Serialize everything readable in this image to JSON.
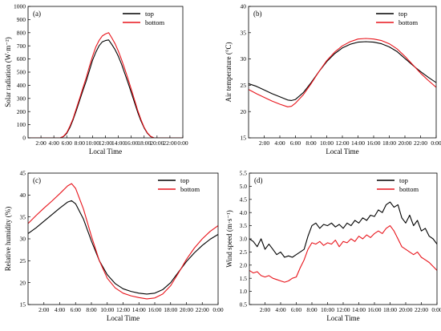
{
  "colors": {
    "top": "#000000",
    "bottom": "#e8141b"
  },
  "chart_data": [
    {
      "type": "line",
      "panel_label": "(a)",
      "xlabel": "Local Time",
      "ylabel": "Solar radiation (W·m⁻²)",
      "xlim": [
        0,
        24
      ],
      "ylim": [
        0,
        1000
      ],
      "xticks": [
        2,
        4,
        6,
        8,
        10,
        12,
        14,
        16,
        18,
        20,
        22,
        24
      ],
      "xtick_labels": [
        "2:00",
        "4:00",
        "6:00",
        "8:00",
        "10:00",
        "12:00",
        "14:00",
        "16:00",
        "18:00",
        "20:00",
        "22:00",
        "0:00"
      ],
      "yticks": [
        0,
        100,
        200,
        300,
        400,
        500,
        600,
        700,
        800,
        900,
        1000
      ],
      "ytick_labels": [
        "0",
        "100",
        "200",
        "300",
        "400",
        "500",
        "600",
        "700",
        "800",
        "900",
        "1000"
      ],
      "legend": "top-right",
      "series": [
        {
          "name": "top",
          "color_key": "top",
          "x": [
            0,
            5.0,
            5.5,
            6,
            6.5,
            7,
            7.5,
            8,
            8.5,
            9,
            9.5,
            10,
            10.5,
            11,
            11.5,
            12,
            12.5,
            13,
            13.5,
            14,
            14.5,
            15,
            15.5,
            16,
            16.5,
            17,
            17.5,
            18,
            18.5,
            19,
            19.5,
            24
          ],
          "y": [
            0,
            0,
            10,
            35,
            80,
            140,
            210,
            285,
            360,
            430,
            510,
            590,
            650,
            700,
            730,
            740,
            745,
            710,
            670,
            620,
            560,
            490,
            420,
            345,
            270,
            195,
            130,
            75,
            35,
            10,
            0,
            0
          ]
        },
        {
          "name": "bottom",
          "color_key": "bottom",
          "x": [
            0,
            5.0,
            5.5,
            6,
            6.5,
            7,
            7.5,
            8,
            8.5,
            9,
            9.5,
            10,
            10.5,
            11,
            11.5,
            12,
            12.5,
            13,
            13.5,
            14,
            14.5,
            15,
            15.5,
            16,
            16.5,
            17,
            17.5,
            18,
            18.5,
            19,
            19.5,
            24
          ],
          "y": [
            0,
            0,
            12,
            40,
            90,
            150,
            225,
            300,
            380,
            455,
            540,
            620,
            690,
            740,
            775,
            790,
            800,
            760,
            715,
            660,
            595,
            525,
            450,
            370,
            290,
            210,
            140,
            80,
            38,
            12,
            0,
            0
          ]
        }
      ]
    },
    {
      "type": "line",
      "panel_label": "(b)",
      "xlabel": "Local Time",
      "ylabel": "Air temperature (°C)",
      "xlim": [
        0,
        24
      ],
      "ylim": [
        15,
        40
      ],
      "xticks": [
        2,
        4,
        6,
        8,
        10,
        12,
        14,
        16,
        18,
        20,
        22,
        24
      ],
      "xtick_labels": [
        "2:00",
        "4:00",
        "6:00",
        "8:00",
        "10:00",
        "12:00",
        "14:00",
        "16:00",
        "18:00",
        "20:00",
        "22:00",
        "0:00"
      ],
      "yticks": [
        15,
        20,
        25,
        30,
        35,
        40
      ],
      "ytick_labels": [
        "15",
        "20",
        "25",
        "30",
        "35",
        "40"
      ],
      "legend": "top-right",
      "series": [
        {
          "name": "top",
          "color_key": "top",
          "x": [
            0,
            1,
            2,
            3,
            4,
            5,
            5.5,
            6,
            7,
            8,
            9,
            10,
            11,
            12,
            13,
            14,
            15,
            16,
            17,
            18,
            19,
            20,
            21,
            22,
            23,
            24
          ],
          "y": [
            25.3,
            24.8,
            24.1,
            23.4,
            22.8,
            22.2,
            22.1,
            22.3,
            23.6,
            25.5,
            27.6,
            29.5,
            31.0,
            32.1,
            32.8,
            33.2,
            33.3,
            33.2,
            32.9,
            32.3,
            31.4,
            30.1,
            28.8,
            27.6,
            26.5,
            25.5
          ]
        },
        {
          "name": "bottom",
          "color_key": "bottom",
          "x": [
            0,
            1,
            2,
            3,
            4,
            5,
            5.5,
            6,
            7,
            8,
            9,
            10,
            11,
            12,
            13,
            14,
            15,
            16,
            17,
            18,
            19,
            20,
            21,
            22,
            23,
            24
          ],
          "y": [
            24.2,
            23.4,
            22.7,
            22.0,
            21.4,
            20.9,
            21.0,
            21.6,
            23.2,
            25.3,
            27.6,
            29.7,
            31.3,
            32.5,
            33.3,
            33.8,
            33.9,
            33.8,
            33.5,
            32.9,
            31.9,
            30.5,
            28.9,
            27.3,
            25.9,
            24.6
          ]
        }
      ]
    },
    {
      "type": "line",
      "panel_label": "(c)",
      "xlabel": "Local Time",
      "ylabel": "Relative humidity (%)",
      "xlim": [
        0,
        24
      ],
      "ylim": [
        15,
        45
      ],
      "xticks": [
        2,
        4,
        6,
        8,
        10,
        12,
        14,
        16,
        18,
        20,
        22,
        24
      ],
      "xtick_labels": [
        "2:00",
        "4:00",
        "6:00",
        "8:00",
        "10:00",
        "12:00",
        "14:00",
        "16:00",
        "18:00",
        "20:00",
        "22:00",
        "0:00"
      ],
      "yticks": [
        15,
        20,
        25,
        30,
        35,
        40,
        45
      ],
      "ytick_labels": [
        "15",
        "20",
        "25",
        "30",
        "35",
        "40",
        "45"
      ],
      "legend": "top-right",
      "series": [
        {
          "name": "top",
          "color_key": "top",
          "x": [
            0,
            1,
            2,
            3,
            4,
            5,
            5.5,
            6,
            7,
            8,
            9,
            10,
            11,
            12,
            13,
            14,
            15,
            16,
            17,
            18,
            19,
            20,
            21,
            22,
            23,
            24
          ],
          "y": [
            31.2,
            32.5,
            34.0,
            35.5,
            37.0,
            38.4,
            38.7,
            38.0,
            34.5,
            29.5,
            25.0,
            21.8,
            19.8,
            18.6,
            18.0,
            17.6,
            17.4,
            17.6,
            18.4,
            20.0,
            22.4,
            24.8,
            26.8,
            28.5,
            29.9,
            31.0
          ]
        },
        {
          "name": "bottom",
          "color_key": "bottom",
          "x": [
            0,
            1,
            2,
            3,
            4,
            5,
            5.5,
            6,
            7,
            8,
            9,
            10,
            11,
            12,
            13,
            14,
            15,
            16,
            17,
            18,
            19,
            20,
            21,
            22,
            23,
            24
          ],
          "y": [
            33.5,
            35.3,
            37.0,
            38.6,
            40.3,
            42.1,
            42.6,
            41.5,
            36.8,
            30.6,
            25.0,
            21.0,
            18.8,
            17.6,
            17.0,
            16.6,
            16.3,
            16.5,
            17.4,
            19.3,
            22.2,
            25.3,
            27.9,
            30.0,
            31.7,
            33.0
          ]
        }
      ]
    },
    {
      "type": "line",
      "panel_label": "(d)",
      "xlabel": "Local Time",
      "ylabel": "Wind speed (m·s⁻¹)",
      "xlim": [
        0,
        24
      ],
      "ylim": [
        0.5,
        5.5
      ],
      "xticks": [
        2,
        4,
        6,
        8,
        10,
        12,
        14,
        16,
        18,
        20,
        22,
        24
      ],
      "xtick_labels": [
        "2:00",
        "4:00",
        "6:00",
        "8:00",
        "10:00",
        "12:00",
        "14:00",
        "16:00",
        "18:00",
        "20:00",
        "22:00",
        "0:00"
      ],
      "yticks": [
        0.5,
        1.0,
        1.5,
        2.0,
        2.5,
        3.0,
        3.5,
        4.0,
        4.5,
        5.0,
        5.5
      ],
      "ytick_labels": [
        "0.5",
        "1.0",
        "1.5",
        "2.0",
        "2.5",
        "3.0",
        "3.5",
        "4.0",
        "4.5",
        "5.0",
        "5.5"
      ],
      "legend": "top-right",
      "series": [
        {
          "name": "top",
          "color_key": "top",
          "x": [
            0,
            0.5,
            1,
            1.5,
            2,
            2.5,
            3,
            3.5,
            4,
            4.5,
            5,
            5.5,
            6,
            6.5,
            7,
            7.5,
            8,
            8.5,
            9,
            9.5,
            10,
            10.5,
            11,
            11.5,
            12,
            12.5,
            13,
            13.5,
            14,
            14.5,
            15,
            15.5,
            16,
            16.5,
            17,
            17.5,
            18,
            18.5,
            19,
            19.5,
            20,
            20.5,
            21,
            21.5,
            22,
            22.5,
            23,
            23.5,
            24
          ],
          "y": [
            3.0,
            2.9,
            2.7,
            3.0,
            2.6,
            2.8,
            2.6,
            2.4,
            2.5,
            2.3,
            2.35,
            2.3,
            2.4,
            2.5,
            2.6,
            3.1,
            3.5,
            3.6,
            3.4,
            3.55,
            3.5,
            3.6,
            3.45,
            3.55,
            3.4,
            3.6,
            3.5,
            3.7,
            3.6,
            3.8,
            3.7,
            3.9,
            3.85,
            4.1,
            4.0,
            4.3,
            4.4,
            4.2,
            4.3,
            3.8,
            3.6,
            3.9,
            3.5,
            3.7,
            3.3,
            3.4,
            3.1,
            3.0,
            2.8
          ]
        },
        {
          "name": "bottom",
          "color_key": "bottom",
          "x": [
            0,
            0.5,
            1,
            1.5,
            2,
            2.5,
            3,
            3.5,
            4,
            4.5,
            5,
            5.5,
            6,
            6.5,
            7,
            7.5,
            8,
            8.5,
            9,
            9.5,
            10,
            10.5,
            11,
            11.5,
            12,
            12.5,
            13,
            13.5,
            14,
            14.5,
            15,
            15.5,
            16,
            16.5,
            17,
            17.5,
            18,
            18.5,
            19,
            19.5,
            20,
            20.5,
            21,
            21.5,
            22,
            22.5,
            23,
            23.5,
            24
          ],
          "y": [
            1.8,
            1.7,
            1.75,
            1.6,
            1.55,
            1.6,
            1.5,
            1.45,
            1.4,
            1.35,
            1.4,
            1.5,
            1.55,
            1.9,
            2.2,
            2.6,
            2.85,
            2.8,
            2.9,
            2.75,
            2.85,
            2.8,
            2.95,
            2.7,
            2.9,
            2.85,
            3.0,
            2.9,
            3.1,
            3.0,
            3.15,
            3.05,
            3.2,
            3.3,
            3.2,
            3.4,
            3.5,
            3.3,
            3.0,
            2.7,
            2.6,
            2.5,
            2.4,
            2.5,
            2.3,
            2.2,
            2.1,
            1.95,
            1.8
          ]
        }
      ]
    }
  ]
}
